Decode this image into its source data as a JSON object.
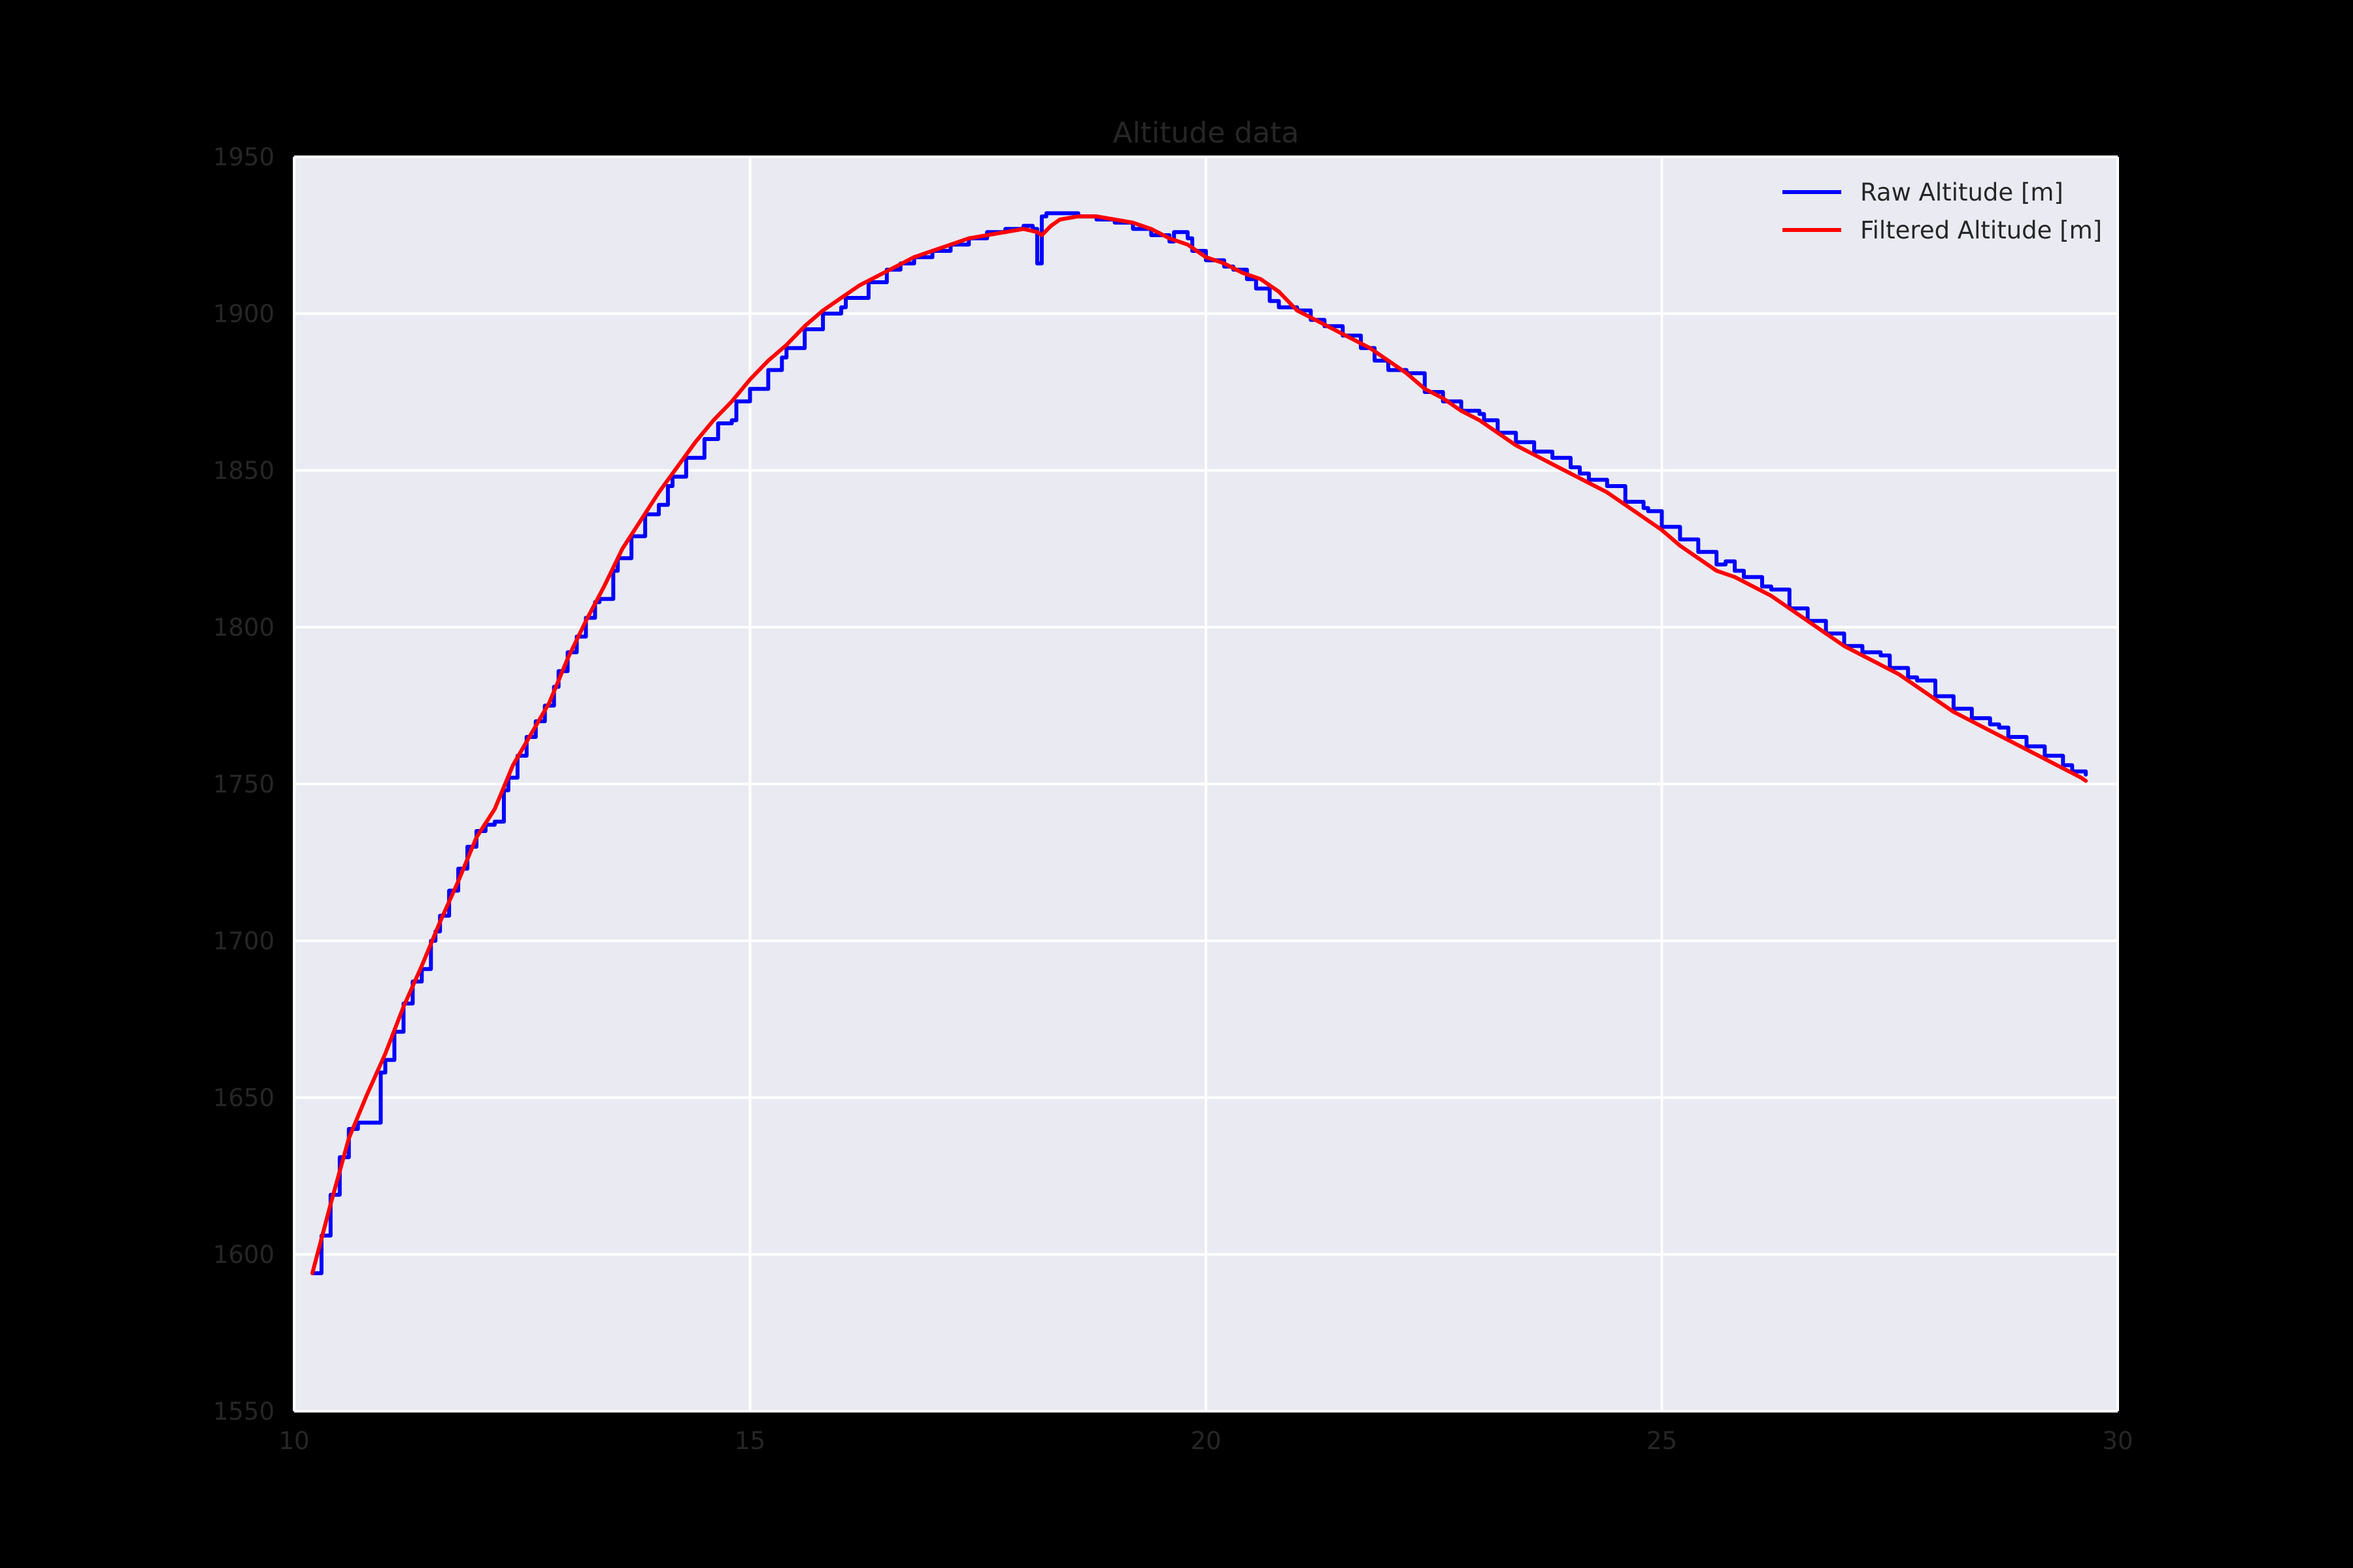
{
  "chart_data": {
    "type": "line",
    "title": "Altitude data",
    "xlabel": "",
    "ylabel": "",
    "xlim": [
      10,
      30
    ],
    "ylim": [
      1550,
      1950
    ],
    "x_ticks": [
      10,
      15,
      20,
      25,
      30
    ],
    "y_ticks": [
      1550,
      1600,
      1650,
      1700,
      1750,
      1800,
      1850,
      1900,
      1950
    ],
    "x_tick_labels": [
      "10",
      "15",
      "20",
      "25",
      "30"
    ],
    "y_tick_labels": [
      "1550",
      "1600",
      "1650",
      "1700",
      "1750",
      "1800",
      "1850",
      "1900",
      "1950"
    ],
    "grid": true,
    "legend_position": "top-right",
    "background_color": "#EAEAF2",
    "grid_color": "#FFFFFF",
    "series": [
      {
        "name": "Raw Altitude [m]",
        "color": "#0000FF",
        "step": true,
        "x": [
          10.2,
          10.3,
          10.4,
          10.5,
          10.6,
          10.7,
          10.75,
          10.95,
          11.0,
          11.1,
          11.2,
          11.3,
          11.4,
          11.5,
          11.55,
          11.6,
          11.7,
          11.8,
          11.9,
          12.0,
          12.1,
          12.2,
          12.3,
          12.35,
          12.45,
          12.55,
          12.65,
          12.75,
          12.85,
          12.9,
          13.0,
          13.1,
          13.2,
          13.3,
          13.35,
          13.5,
          13.55,
          13.7,
          13.85,
          14.0,
          14.1,
          14.15,
          14.3,
          14.5,
          14.65,
          14.8,
          14.85,
          15.0,
          15.2,
          15.35,
          15.4,
          15.6,
          15.8,
          16.0,
          16.05,
          16.3,
          16.5,
          16.65,
          16.8,
          17.0,
          17.2,
          17.4,
          17.6,
          17.8,
          18.0,
          18.1,
          18.15,
          18.2,
          18.25,
          18.3,
          18.4,
          18.5,
          18.6,
          18.8,
          19.0,
          19.2,
          19.4,
          19.6,
          19.65,
          19.8,
          19.85,
          20.0,
          20.2,
          20.3,
          20.45,
          20.55,
          20.7,
          20.8,
          21.0,
          21.15,
          21.3,
          21.5,
          21.7,
          21.85,
          22.0,
          22.2,
          22.4,
          22.6,
          22.8,
          23.0,
          23.05,
          23.2,
          23.4,
          23.6,
          23.8,
          24.0,
          24.1,
          24.2,
          24.4,
          24.6,
          24.8,
          24.85,
          25.0,
          25.2,
          25.4,
          25.6,
          25.7,
          25.8,
          25.9,
          26.1,
          26.2,
          26.4,
          26.6,
          26.8,
          27.0,
          27.2,
          27.4,
          27.5,
          27.7,
          27.8,
          28.0,
          28.2,
          28.4,
          28.6,
          28.7,
          28.8,
          29.0,
          29.2,
          29.4,
          29.5,
          29.65
        ],
        "y": [
          1594,
          1606,
          1619,
          1631,
          1640,
          1642,
          1642,
          1658,
          1662,
          1671,
          1680,
          1687,
          1691,
          1700,
          1703,
          1708,
          1716,
          1723,
          1730,
          1735,
          1737,
          1738,
          1748,
          1752,
          1759,
          1765,
          1770,
          1775,
          1781,
          1786,
          1792,
          1797,
          1803,
          1808,
          1809,
          1818,
          1822,
          1829,
          1836,
          1839,
          1845,
          1848,
          1854,
          1860,
          1865,
          1866,
          1872,
          1876,
          1882,
          1886,
          1889,
          1895,
          1900,
          1902,
          1905,
          1910,
          1914,
          1916,
          1918,
          1920,
          1922,
          1924,
          1926,
          1927,
          1928,
          1927,
          1916,
          1931,
          1932,
          1932,
          1932,
          1932,
          1931,
          1930,
          1929,
          1927,
          1925,
          1923,
          1926,
          1924,
          1920,
          1917,
          1915,
          1914,
          1911,
          1908,
          1904,
          1902,
          1901,
          1898,
          1896,
          1893,
          1889,
          1885,
          1882,
          1881,
          1875,
          1872,
          1869,
          1868,
          1866,
          1862,
          1859,
          1856,
          1854,
          1851,
          1849,
          1847,
          1845,
          1840,
          1838,
          1837,
          1832,
          1828,
          1824,
          1820,
          1821,
          1818,
          1816,
          1813,
          1812,
          1806,
          1802,
          1798,
          1794,
          1792,
          1791,
          1787,
          1784,
          1783,
          1778,
          1774,
          1771,
          1769,
          1768,
          1765,
          1762,
          1759,
          1756,
          1754,
          1753
        ]
      },
      {
        "name": "Filtered Altitude [m]",
        "color": "#FF0000",
        "step": false,
        "x": [
          10.2,
          10.4,
          10.6,
          10.8,
          11.0,
          11.2,
          11.4,
          11.6,
          11.8,
          12.0,
          12.2,
          12.4,
          12.6,
          12.8,
          13.0,
          13.2,
          13.4,
          13.6,
          13.8,
          14.0,
          14.2,
          14.4,
          14.6,
          14.8,
          15.0,
          15.2,
          15.4,
          15.6,
          15.8,
          16.0,
          16.2,
          16.4,
          16.6,
          16.8,
          17.0,
          17.2,
          17.4,
          17.6,
          17.8,
          18.0,
          18.15,
          18.2,
          18.3,
          18.4,
          18.6,
          18.8,
          19.0,
          19.2,
          19.4,
          19.6,
          19.8,
          20.0,
          20.2,
          20.4,
          20.6,
          20.8,
          21.0,
          21.2,
          21.4,
          21.6,
          21.8,
          22.0,
          22.2,
          22.4,
          22.6,
          22.8,
          23.0,
          23.2,
          23.4,
          23.6,
          23.8,
          24.0,
          24.2,
          24.4,
          24.6,
          24.8,
          25.0,
          25.2,
          25.4,
          25.6,
          25.8,
          26.0,
          26.2,
          26.4,
          26.6,
          26.8,
          27.0,
          27.2,
          27.4,
          27.6,
          27.8,
          28.0,
          28.2,
          28.4,
          28.6,
          28.8,
          29.0,
          29.2,
          29.4,
          29.6,
          29.65
        ],
        "y": [
          1594,
          1616,
          1637,
          1651,
          1664,
          1679,
          1692,
          1706,
          1719,
          1733,
          1742,
          1756,
          1766,
          1776,
          1790,
          1802,
          1813,
          1825,
          1834,
          1843,
          1851,
          1859,
          1866,
          1872,
          1879,
          1885,
          1890,
          1896,
          1901,
          1905,
          1909,
          1912,
          1915,
          1918,
          1920,
          1922,
          1924,
          1925,
          1926,
          1927,
          1926,
          1925,
          1928,
          1930,
          1931,
          1931,
          1930,
          1929,
          1927,
          1924,
          1922,
          1918,
          1916,
          1913,
          1911,
          1907,
          1901,
          1898,
          1895,
          1892,
          1889,
          1885,
          1881,
          1876,
          1873,
          1869,
          1866,
          1862,
          1858,
          1855,
          1852,
          1849,
          1846,
          1843,
          1839,
          1835,
          1831,
          1826,
          1822,
          1818,
          1816,
          1813,
          1810,
          1806,
          1802,
          1798,
          1794,
          1791,
          1788,
          1785,
          1781,
          1777,
          1773,
          1770,
          1767,
          1764,
          1761,
          1758,
          1755,
          1752,
          1751
        ]
      }
    ]
  }
}
